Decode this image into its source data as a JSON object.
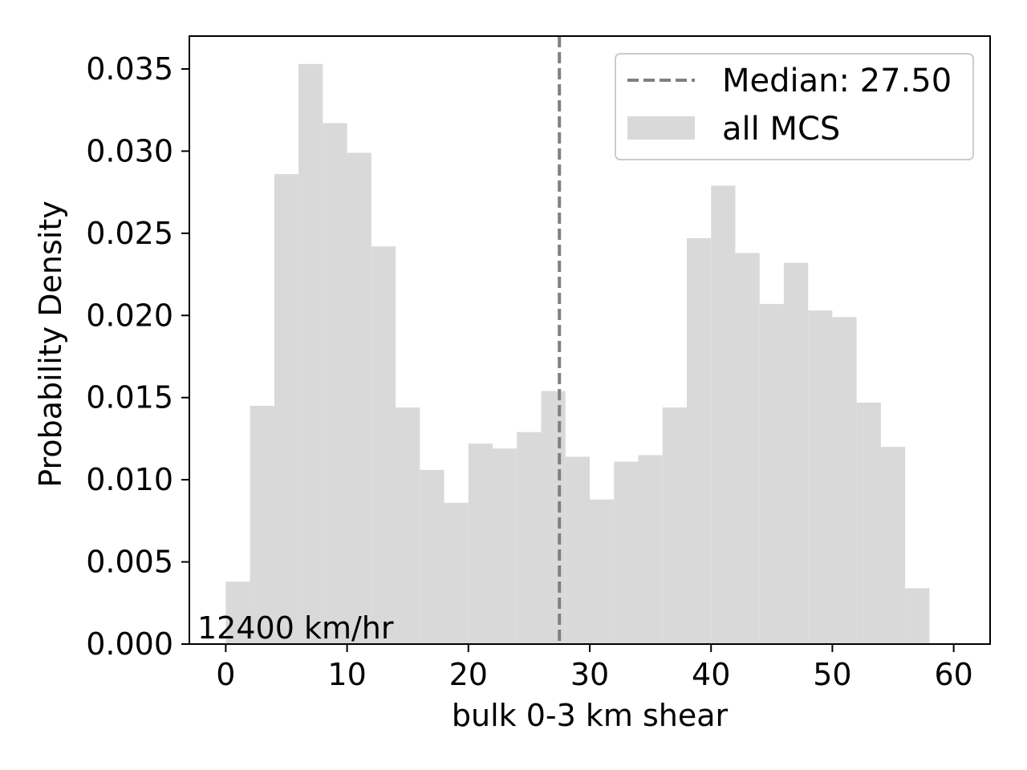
{
  "chart_data": {
    "type": "bar",
    "xlabel": "bulk 0-3 km shear",
    "ylabel": "Probability Density",
    "xlim": [
      -3,
      63
    ],
    "ylim": [
      0,
      0.037
    ],
    "x_ticks": [
      0,
      10,
      20,
      30,
      40,
      50,
      60
    ],
    "x_tick_labels": [
      "0",
      "10",
      "20",
      "30",
      "40",
      "50",
      "60"
    ],
    "y_ticks": [
      0,
      0.005,
      0.01,
      0.015,
      0.02,
      0.025,
      0.03,
      0.035
    ],
    "y_tick_labels": [
      "0.000",
      "0.005",
      "0.010",
      "0.015",
      "0.020",
      "0.025",
      "0.030",
      "0.035"
    ],
    "bin_edges": [
      0,
      2,
      4,
      6,
      8,
      10,
      12,
      14,
      16,
      18,
      20,
      22,
      24,
      26,
      28,
      30,
      32,
      34,
      36,
      38,
      40,
      42,
      44,
      46,
      48,
      50,
      52,
      54,
      56,
      58
    ],
    "series": [
      {
        "name": "all MCS",
        "color": "#d9d9d9",
        "values": [
          0.0038,
          0.0145,
          0.0286,
          0.0353,
          0.0317,
          0.0299,
          0.0242,
          0.0144,
          0.0106,
          0.0086,
          0.0122,
          0.0119,
          0.0129,
          0.0154,
          0.0114,
          0.0088,
          0.0111,
          0.0115,
          0.0144,
          0.0247,
          0.0279,
          0.0238,
          0.0207,
          0.0232,
          0.0203,
          0.0199,
          0.0147,
          0.012,
          0.0034
        ]
      }
    ],
    "median": {
      "value": 27.5,
      "label": "Median: 27.50",
      "color": "#808080",
      "style": "dashed"
    },
    "legend": {
      "placement": "top-right",
      "entries": [
        "Median: 27.50",
        "all MCS"
      ]
    },
    "annotation": "12400 km/hr",
    "grid": false
  }
}
